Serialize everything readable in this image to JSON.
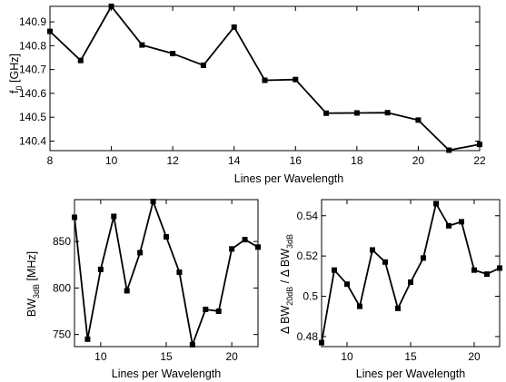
{
  "chart_data": [
    {
      "type": "line",
      "xlabel": "Lines per Wavelength",
      "ylabel_main": "f",
      "ylabel_sub": "0",
      "ylabel_unit": " [GHz]",
      "xlim": [
        8,
        22
      ],
      "ylim": [
        140.36,
        140.965
      ],
      "xticks": [
        8,
        10,
        12,
        14,
        16,
        18,
        20,
        22
      ],
      "yticks": [
        140.4,
        140.5,
        140.6,
        140.7,
        140.8,
        140.9
      ],
      "ytick_labels": [
        "140.4",
        "140.5",
        "140.6",
        "140.7",
        "140.8",
        "140.9"
      ],
      "x": [
        8,
        9,
        10,
        11,
        12,
        13,
        14,
        15,
        16,
        17,
        18,
        19,
        20,
        21,
        22
      ],
      "values": [
        140.86,
        140.738,
        140.965,
        140.803,
        140.767,
        140.718,
        140.878,
        140.655,
        140.658,
        140.517,
        140.518,
        140.519,
        140.488,
        140.362,
        140.386
      ],
      "grid": false,
      "color": "#000000"
    },
    {
      "type": "line",
      "xlabel": "Lines per Wavelength",
      "ylabel_main": "BW",
      "ylabel_sub": "3dB",
      "ylabel_unit": " [MHz]",
      "xlim": [
        8,
        22
      ],
      "ylim": [
        737,
        895
      ],
      "xticks": [
        10,
        15,
        20
      ],
      "yticks": [
        750,
        800,
        850
      ],
      "ytick_labels": [
        "750",
        "800",
        "850"
      ],
      "x": [
        8,
        9,
        10,
        11,
        12,
        13,
        14,
        15,
        16,
        17,
        18,
        19,
        20,
        21,
        22
      ],
      "values": [
        876,
        745,
        820,
        877,
        797,
        838,
        893,
        855,
        817,
        739,
        777,
        775,
        842,
        852,
        844
      ],
      "grid": false,
      "color": "#000000"
    },
    {
      "type": "line",
      "xlabel": "Lines per Wavelength",
      "ylabel_main": "Δ BW",
      "ylabel_sub": "20dB",
      "ylabel_mid": " / Δ BW",
      "ylabel_sub2": "3dB",
      "xlim": [
        8,
        22
      ],
      "ylim": [
        0.475,
        0.548
      ],
      "xticks": [
        10,
        15,
        20
      ],
      "yticks": [
        0.48,
        0.5,
        0.52,
        0.54
      ],
      "ytick_labels": [
        "0.48",
        "0.5",
        "0.52",
        "0.54"
      ],
      "x": [
        8,
        9,
        10,
        11,
        12,
        13,
        14,
        15,
        16,
        17,
        18,
        19,
        20,
        21,
        22
      ],
      "values": [
        0.477,
        0.513,
        0.506,
        0.495,
        0.523,
        0.517,
        0.494,
        0.507,
        0.519,
        0.546,
        0.535,
        0.537,
        0.513,
        0.511,
        0.514
      ],
      "grid": false,
      "color": "#000000"
    }
  ]
}
